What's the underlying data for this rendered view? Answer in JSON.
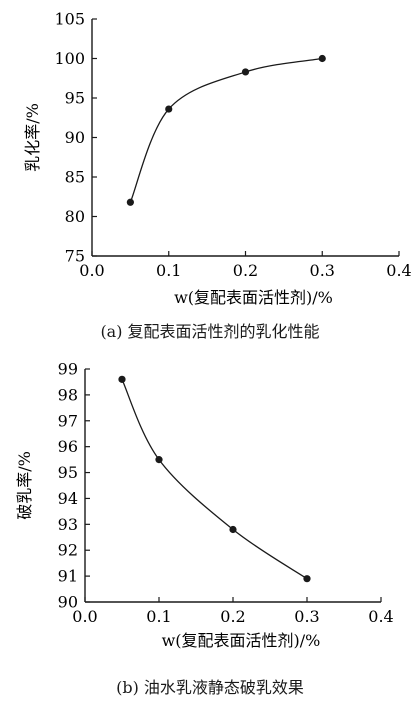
{
  "chart_data": [
    {
      "type": "line",
      "caption": "(a) 复配表面活性剂的乳化性能",
      "xlabel": "w(复配表面活性剂)/%",
      "ylabel": "乳化率/%",
      "xlim": [
        0.0,
        0.4
      ],
      "ylim": [
        75,
        105
      ],
      "xticks": [
        "0.0",
        "0.1",
        "0.2",
        "0.3",
        "0.4"
      ],
      "yticks": [
        "75",
        "80",
        "85",
        "90",
        "95",
        "100",
        "105"
      ],
      "x": [
        0.05,
        0.1,
        0.2,
        0.3
      ],
      "values": [
        81.8,
        93.6,
        98.3,
        100.0
      ],
      "grid": false
    },
    {
      "type": "line",
      "caption": "(b) 油水乳液静态破乳效果",
      "xlabel": "w(复配表面活性剂)/%",
      "ylabel": "破乳率/%",
      "xlim": [
        0.0,
        0.4
      ],
      "ylim": [
        90,
        99
      ],
      "xticks": [
        "0.0",
        "0.1",
        "0.2",
        "0.3",
        "0.4"
      ],
      "yticks": [
        "90",
        "91",
        "92",
        "93",
        "94",
        "95",
        "96",
        "97",
        "98",
        "99"
      ],
      "x": [
        0.05,
        0.1,
        0.2,
        0.3
      ],
      "values": [
        98.6,
        95.5,
        92.8,
        90.9
      ],
      "grid": false
    }
  ]
}
